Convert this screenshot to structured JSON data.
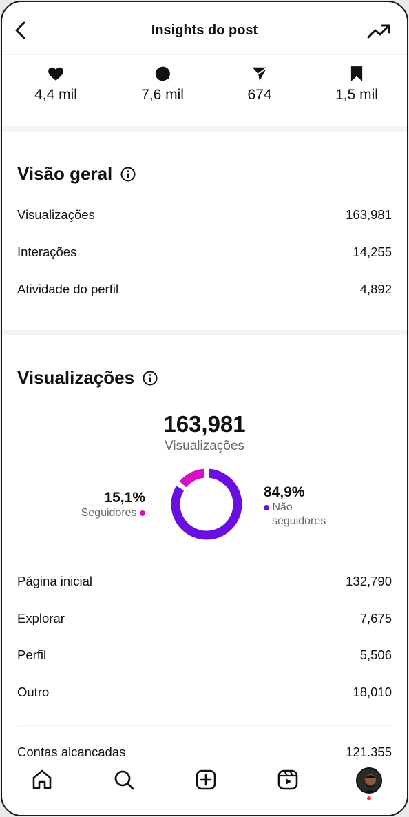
{
  "header": {
    "title": "Insights do post"
  },
  "stats": [
    {
      "icon": "heart-icon",
      "value": "4,4 mil"
    },
    {
      "icon": "comment-icon",
      "value": "7,6 mil"
    },
    {
      "icon": "send-icon",
      "value": "674"
    },
    {
      "icon": "bookmark-icon",
      "value": "1,5 mil"
    }
  ],
  "overview": {
    "title": "Visão geral",
    "rows": [
      {
        "label": "Visualizações",
        "value": "163,981"
      },
      {
        "label": "Interações",
        "value": "14,255"
      },
      {
        "label": "Atividade do perfil",
        "value": "4,892"
      }
    ]
  },
  "views": {
    "title": "Visualizações",
    "total": "163,981",
    "total_label": "Visualizações",
    "followers": {
      "pct": "15,1%",
      "label": "Seguidores",
      "fraction": 0.151,
      "color": "#d511c6"
    },
    "non_followers": {
      "pct": "84,9%",
      "label_line1": "Não",
      "label_line2": "seguidores",
      "fraction": 0.849,
      "color": "#6a0fe0"
    },
    "sources": [
      {
        "label": "Página inicial",
        "value": "132,790"
      },
      {
        "label": "Explorar",
        "value": "7,675"
      },
      {
        "label": "Perfil",
        "value": "5,506"
      },
      {
        "label": "Outro",
        "value": "18,010"
      }
    ],
    "accounts_label": "Contas alcançadas",
    "accounts_value": "121,355"
  },
  "nav": [
    "home-icon",
    "search-icon",
    "create-icon",
    "reels-icon",
    "profile-avatar"
  ]
}
